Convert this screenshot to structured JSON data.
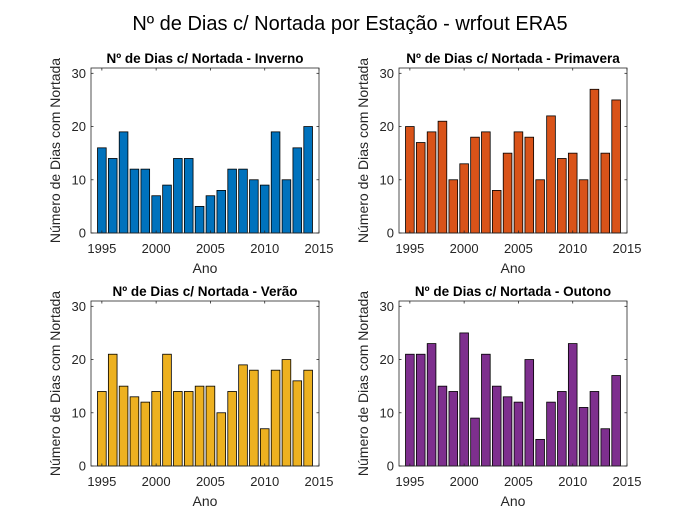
{
  "figure": {
    "suptitle": "Nº de Dias c/ Nortada por Estação - wrfout ERA5"
  },
  "chart_data": [
    {
      "type": "bar",
      "title": "Nº de Dias c/ Nortada - Inverno",
      "xlabel": "Ano",
      "ylabel": "Número de Dias com Nortada",
      "x": [
        1995,
        1996,
        1997,
        1998,
        1999,
        2000,
        2001,
        2002,
        2003,
        2004,
        2005,
        2006,
        2007,
        2008,
        2009,
        2010,
        2011,
        2012,
        2013,
        2014
      ],
      "values": [
        16,
        14,
        19,
        12,
        12,
        7,
        9,
        14,
        14,
        5,
        7,
        8,
        12,
        12,
        10,
        9,
        19,
        10,
        16,
        20
      ],
      "xlim": [
        1994,
        2015
      ],
      "ylim": [
        0,
        31
      ],
      "xticks": [
        1995,
        2000,
        2005,
        2010,
        2015
      ],
      "yticks": [
        0,
        10,
        20,
        30
      ],
      "color": "#0072BD",
      "grid": false
    },
    {
      "type": "bar",
      "title": "Nº de Dias c/ Nortada - Primavera",
      "xlabel": "Ano",
      "ylabel": "Número de Dias com Nortada",
      "x": [
        1995,
        1996,
        1997,
        1998,
        1999,
        2000,
        2001,
        2002,
        2003,
        2004,
        2005,
        2006,
        2007,
        2008,
        2009,
        2010,
        2011,
        2012,
        2013,
        2014
      ],
      "values": [
        20,
        17,
        19,
        21,
        10,
        13,
        18,
        19,
        8,
        15,
        19,
        18,
        10,
        22,
        14,
        15,
        10,
        27,
        15,
        25
      ],
      "xlim": [
        1994,
        2015
      ],
      "ylim": [
        0,
        31
      ],
      "xticks": [
        1995,
        2000,
        2005,
        2010,
        2015
      ],
      "yticks": [
        0,
        10,
        20,
        30
      ],
      "color": "#D95319",
      "grid": false
    },
    {
      "type": "bar",
      "title": "Nº de Dias c/ Nortada - Verão",
      "xlabel": "Ano",
      "ylabel": "Número de Dias com Nortada",
      "x": [
        1995,
        1996,
        1997,
        1998,
        1999,
        2000,
        2001,
        2002,
        2003,
        2004,
        2005,
        2006,
        2007,
        2008,
        2009,
        2010,
        2011,
        2012,
        2013,
        2014
      ],
      "values": [
        14,
        21,
        15,
        13,
        12,
        14,
        21,
        14,
        14,
        15,
        15,
        10,
        14,
        19,
        18,
        7,
        18,
        20,
        16,
        18
      ],
      "xlim": [
        1994,
        2015
      ],
      "ylim": [
        0,
        31
      ],
      "xticks": [
        1995,
        2000,
        2005,
        2010,
        2015
      ],
      "yticks": [
        0,
        10,
        20,
        30
      ],
      "color": "#EDB120",
      "grid": false
    },
    {
      "type": "bar",
      "title": "Nº de Dias c/ Nortada - Outono",
      "xlabel": "Ano",
      "ylabel": "Número de Dias com Nortada",
      "x": [
        1995,
        1996,
        1997,
        1998,
        1999,
        2000,
        2001,
        2002,
        2003,
        2004,
        2005,
        2006,
        2007,
        2008,
        2009,
        2010,
        2011,
        2012,
        2013,
        2014
      ],
      "values": [
        21,
        21,
        23,
        15,
        14,
        25,
        9,
        21,
        15,
        13,
        12,
        20,
        5,
        12,
        14,
        23,
        11,
        14,
        7,
        17
      ],
      "xlim": [
        1994,
        2015
      ],
      "ylim": [
        0,
        31
      ],
      "xticks": [
        1995,
        2000,
        2005,
        2010,
        2015
      ],
      "yticks": [
        0,
        10,
        20,
        30
      ],
      "color": "#7E2F8E",
      "grid": false
    }
  ]
}
